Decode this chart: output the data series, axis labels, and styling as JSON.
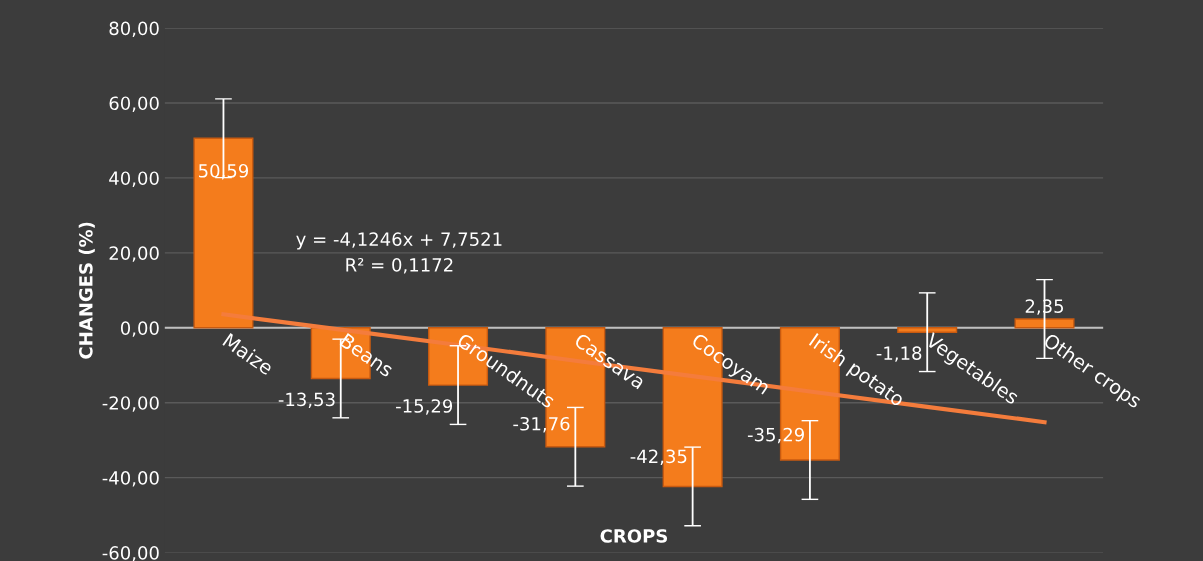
{
  "chart_data": {
    "type": "bar",
    "xlabel": "CROPS",
    "ylabel": "CHANGES (%)",
    "categories": [
      "Maize",
      "Beans",
      "Groundnuts",
      "Cassava",
      "Cocoyam",
      "Irish potato",
      "Vegetables",
      "Other crops"
    ],
    "series": [
      {
        "color": "#f47c1c",
        "values": [
          50.59,
          -13.53,
          -15.29,
          -31.76,
          -42.35,
          -35.29,
          -1.18,
          2.35
        ],
        "errors": [
          10.5,
          10.5,
          10.5,
          10.5,
          10.5,
          10.5,
          10.5,
          10.5
        ],
        "value_labels": [
          "50,59",
          "-13,53",
          "-15,29",
          "-31,76",
          "-42,35",
          "-35,29",
          "-1,18",
          "2,35"
        ]
      },
      {
        "type": "line",
        "color": "#f47c3c",
        "values": [
          3.6,
          -0.5,
          -4.6,
          -8.8,
          -12.9,
          -17.0,
          -21.1,
          -25.2
        ]
      }
    ],
    "annotations": [
      "y = -4,1246x + 7,7521\nR² = 0,1172"
    ],
    "ylim": [
      -60,
      80
    ],
    "yticks": [
      {
        "value": -60,
        "label": "-60,00"
      },
      {
        "value": -40,
        "label": "-40,00"
      },
      {
        "value": -20,
        "label": "-20,00"
      },
      {
        "value": 0,
        "label": "0,00"
      },
      {
        "value": 20,
        "label": "20,00"
      },
      {
        "value": 40,
        "label": "40,00"
      },
      {
        "value": 60,
        "label": "60,00"
      },
      {
        "value": 80,
        "label": "80,00"
      }
    ],
    "grid": "y"
  }
}
